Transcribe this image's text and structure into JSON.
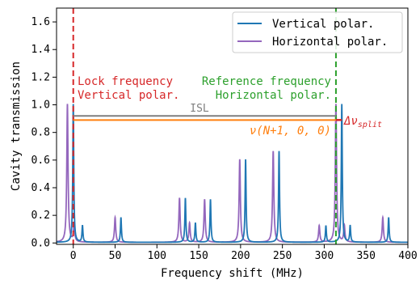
{
  "chart_data": {
    "type": "line",
    "xlabel": "Frequency shift (MHz)",
    "ylabel": "Cavity transmission",
    "xlim": [
      -20,
      400
    ],
    "ylim": [
      -0.01,
      1.7
    ],
    "x_ticks": [
      "0",
      "50",
      "100",
      "150",
      "200",
      "250",
      "300",
      "350",
      "400"
    ],
    "x_tick_values": [
      0,
      50,
      100,
      150,
      200,
      250,
      300,
      350,
      400
    ],
    "y_ticks": [
      "0.0",
      "0.2",
      "0.4",
      "0.6",
      "0.8",
      "1.0",
      "1.2",
      "1.4",
      "1.6"
    ],
    "y_tick_values": [
      0.0,
      0.2,
      0.4,
      0.6,
      0.8,
      1.0,
      1.2,
      1.4,
      1.6
    ],
    "grid": false,
    "legend_position": "top-right",
    "series": [
      {
        "name": "Vertical polar.",
        "color": "#1f77b4",
        "peaks": [
          {
            "x": 0,
            "y": 1.0,
            "w": 0.7
          },
          {
            "x": 11,
            "y": 0.12,
            "w": 0.7
          },
          {
            "x": 57,
            "y": 0.18,
            "w": 0.7
          },
          {
            "x": 134,
            "y": 0.32,
            "w": 0.7
          },
          {
            "x": 146,
            "y": 0.14,
            "w": 0.7
          },
          {
            "x": 164,
            "y": 0.31,
            "w": 0.7
          },
          {
            "x": 206,
            "y": 0.6,
            "w": 0.7
          },
          {
            "x": 246,
            "y": 0.66,
            "w": 0.7
          },
          {
            "x": 302,
            "y": 0.12,
            "w": 0.7
          },
          {
            "x": 321,
            "y": 1.0,
            "w": 0.7
          },
          {
            "x": 331,
            "y": 0.12,
            "w": 0.7
          },
          {
            "x": 377,
            "y": 0.18,
            "w": 0.7
          }
        ]
      },
      {
        "name": "Horizontal polar.",
        "color": "#9467bd",
        "peaks": [
          {
            "x": -7,
            "y": 1.0,
            "w": 0.9
          },
          {
            "x": 1,
            "y": 0.13,
            "w": 0.9
          },
          {
            "x": 50,
            "y": 0.18,
            "w": 0.9
          },
          {
            "x": 127,
            "y": 0.32,
            "w": 0.9
          },
          {
            "x": 139,
            "y": 0.14,
            "w": 0.9
          },
          {
            "x": 157,
            "y": 0.31,
            "w": 0.9
          },
          {
            "x": 199,
            "y": 0.6,
            "w": 0.9
          },
          {
            "x": 239,
            "y": 0.66,
            "w": 0.9
          },
          {
            "x": 294,
            "y": 0.12,
            "w": 0.9
          },
          {
            "x": 314,
            "y": 1.0,
            "w": 0.9
          },
          {
            "x": 324,
            "y": 0.12,
            "w": 0.9
          },
          {
            "x": 370,
            "y": 0.18,
            "w": 0.9
          }
        ]
      }
    ],
    "vertical_markers": [
      {
        "x": 0,
        "color": "#d62728",
        "style": "dashed"
      },
      {
        "x": 314,
        "color": "#2ca02c",
        "style": "dashed"
      }
    ],
    "isl_line": {
      "x0": 0,
      "x1": 314,
      "y": 0.92,
      "color": "#7f7f7f",
      "label": "ISL"
    },
    "nu_line": {
      "x0": 0,
      "x1": 321,
      "y": 0.89,
      "color": "#ff7f0e",
      "label": "ν(N+1, 0, 0)"
    },
    "delta_split": {
      "x0": 314,
      "x1": 321,
      "y": 0.89,
      "color": "#d62728",
      "label": "Δν",
      "subscript": "split"
    },
    "annotations": {
      "lock_line1": "Lock frequency",
      "lock_line2": "Vertical polar.",
      "lock_color": "#d62728",
      "ref_line1": "Reference frequency",
      "ref_line2": "Horizontal polar.",
      "ref_color": "#2ca02c"
    }
  }
}
